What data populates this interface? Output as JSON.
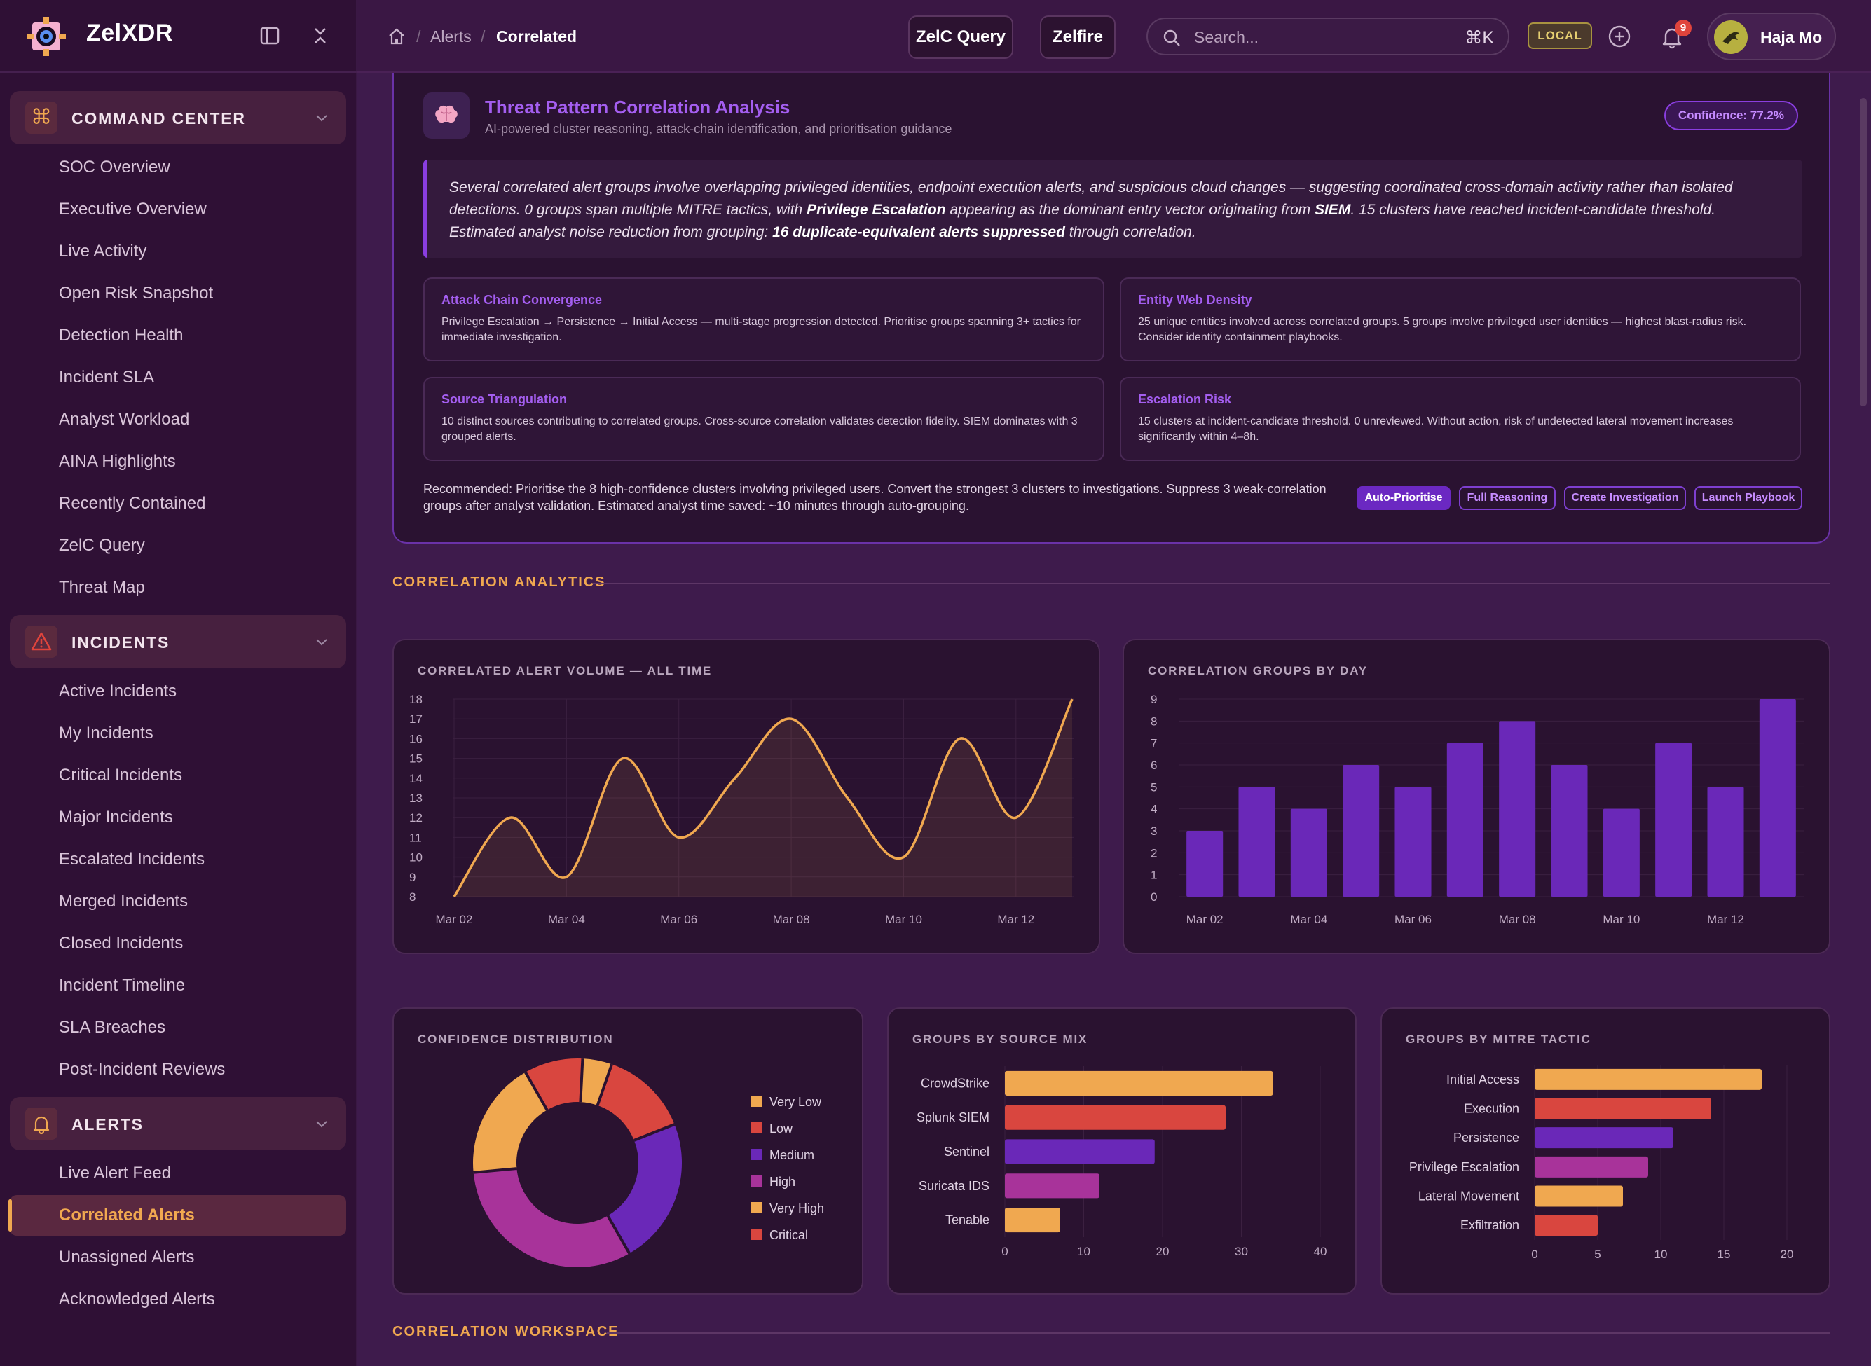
{
  "app": {
    "name": "ZelXDR"
  },
  "header": {
    "breadcrumb": [
      "Alerts",
      "Correlated"
    ],
    "buttons": [
      "ZelC Query",
      "Zelfire"
    ],
    "search_placeholder": "Search...",
    "search_shortcut": "⌘K",
    "env_badge": "LOCAL",
    "notification_count": "9",
    "user_name": "Haja Mo"
  },
  "sidebar": {
    "sections": [
      {
        "label": "COMMAND CENTER",
        "icon": "command-icon",
        "items": [
          "SOC Overview",
          "Executive Overview",
          "Live Activity",
          "Open Risk Snapshot",
          "Detection Health",
          "Incident SLA",
          "Analyst Workload",
          "AINA Highlights",
          "Recently Contained",
          "ZelC Query",
          "Threat Map"
        ]
      },
      {
        "label": "INCIDENTS",
        "icon": "warning-triangle-icon",
        "items": [
          "Active Incidents",
          "My Incidents",
          "Critical Incidents",
          "Major Incidents",
          "Escalated Incidents",
          "Merged Incidents",
          "Closed Incidents",
          "Incident Timeline",
          "SLA Breaches",
          "Post-Incident Reviews"
        ]
      },
      {
        "label": "ALERTS",
        "icon": "bell-icon",
        "items": [
          "Live Alert Feed",
          "Correlated Alerts",
          "Unassigned Alerts",
          "Acknowledged Alerts"
        ]
      }
    ],
    "active_item": "Correlated Alerts"
  },
  "ai_panel": {
    "title": "Threat Pattern Correlation Analysis",
    "subtitle": "AI-powered cluster reasoning, attack-chain identification, and prioritisation guidance",
    "confidence": "Confidence: 77.2%",
    "summary": {
      "p1": "Several correlated alert groups involve overlapping privileged identities, endpoint execution alerts, and suspicious cloud changes — suggesting coordinated cross-domain activity rather than isolated detections. 0 groups span multiple MITRE tactics, with ",
      "b1": "Privilege Escalation",
      "p2": " appearing as the dominant entry vector originating from ",
      "b2": "SIEM",
      "p3": ". 15 clusters have reached incident-candidate threshold. Estimated analyst noise reduction from grouping: ",
      "b3": "16 duplicate-equivalent alerts suppressed",
      "p4": " through correlation."
    },
    "insights": [
      {
        "title": "Attack Chain Convergence",
        "text": "Privilege Escalation → Persistence → Initial Access — multi-stage progression detected. Prioritise groups spanning 3+ tactics for immediate investigation."
      },
      {
        "title": "Entity Web Density",
        "text": "25 unique entities involved across correlated groups. 5 groups involve privileged user identities — highest blast-radius risk. Consider identity containment playbooks."
      },
      {
        "title": "Source Triangulation",
        "text": "10 distinct sources contributing to correlated groups. Cross-source correlation validates detection fidelity. SIEM dominates with 3 grouped alerts."
      },
      {
        "title": "Escalation Risk",
        "text": "15 clusters at incident-candidate threshold. 0 unreviewed. Without action, risk of undetected lateral movement increases significantly within 4–8h."
      }
    ],
    "recommendation": "Recommended: Prioritise the 8 high-confidence clusters involving privileged users. Convert the strongest 3 clusters to investigations. Suppress 3 weak-correlation groups after analyst validation. Estimated analyst time saved: ~10 minutes through auto-grouping.",
    "actions": [
      "Auto-Prioritise",
      "Full Reasoning",
      "Create Investigation",
      "Launch Playbook"
    ]
  },
  "sections": {
    "analytics": "CORRELATION ANALYTICS",
    "workspace": "CORRELATION WORKSPACE"
  },
  "colors": {
    "accent": "#8a3ee0",
    "orange": "#f0a850",
    "red": "#d9463f",
    "purple": "#6a28b8",
    "magenta": "#a8339a"
  },
  "chart_data": [
    {
      "type": "area",
      "title": "CORRELATED ALERT VOLUME — ALL TIME",
      "x": [
        "Mar 02",
        "Mar 03",
        "Mar 04",
        "Mar 05",
        "Mar 06",
        "Mar 07",
        "Mar 08",
        "Mar 09",
        "Mar 10",
        "Mar 11",
        "Mar 12",
        "Mar 13"
      ],
      "x_tick_labels": [
        "Mar 02",
        "Mar 04",
        "Mar 06",
        "Mar 08",
        "Mar 10",
        "Mar 12"
      ],
      "values": [
        8,
        12,
        9,
        15,
        11,
        14,
        17,
        13,
        10,
        16,
        12,
        18
      ],
      "ylim": [
        8,
        18
      ],
      "y_ticks": [
        8,
        9,
        10,
        11,
        12,
        13,
        14,
        15,
        16,
        17,
        18
      ],
      "grid": true
    },
    {
      "type": "bar",
      "title": "CORRELATION GROUPS BY DAY",
      "categories": [
        "Mar 02",
        "Mar 03",
        "Mar 04",
        "Mar 05",
        "Mar 06",
        "Mar 07",
        "Mar 08",
        "Mar 09",
        "Mar 10",
        "Mar 11",
        "Mar 12",
        "Mar 13"
      ],
      "x_tick_labels": [
        "Mar 02",
        "Mar 04",
        "Mar 06",
        "Mar 08",
        "Mar 10",
        "Mar 12"
      ],
      "values": [
        3,
        5,
        4,
        6,
        5,
        7,
        8,
        6,
        4,
        7,
        5,
        9
      ],
      "ylim": [
        0,
        9
      ],
      "y_ticks": [
        0,
        1,
        2,
        3,
        4,
        5,
        6,
        7,
        8,
        9
      ],
      "grid": true
    },
    {
      "type": "pie",
      "title": "CONFIDENCE DISTRIBUTION",
      "categories": [
        "Very Low",
        "Low",
        "Medium",
        "High",
        "Very High",
        "Critical"
      ],
      "values": [
        1,
        3,
        5,
        7,
        4,
        2
      ],
      "colors": [
        "#f0a850",
        "#d9463f",
        "#6a28b8",
        "#a8339a",
        "#f0a850",
        "#d9463f"
      ],
      "legend": "right"
    },
    {
      "type": "bar",
      "orientation": "horizontal",
      "title": "GROUPS BY SOURCE MIX",
      "categories": [
        "CrowdStrike",
        "Splunk SIEM",
        "Sentinel",
        "Suricata IDS",
        "Tenable"
      ],
      "values": [
        34,
        28,
        19,
        12,
        7
      ],
      "colors": [
        "#f0a850",
        "#d9463f",
        "#6a28b8",
        "#a8339a",
        "#f0a850"
      ],
      "xlim": [
        0,
        40
      ],
      "x_ticks": [
        0,
        10,
        20,
        30,
        40
      ]
    },
    {
      "type": "bar",
      "orientation": "horizontal",
      "title": "GROUPS BY MITRE TACTIC",
      "categories": [
        "Initial Access",
        "Execution",
        "Persistence",
        "Privilege Escalation",
        "Lateral Movement",
        "Exfiltration"
      ],
      "values": [
        18,
        14,
        11,
        9,
        7,
        5
      ],
      "colors": [
        "#f0a850",
        "#d9463f",
        "#6a28b8",
        "#a8339a",
        "#f0a850",
        "#d9463f"
      ],
      "xlim": [
        0,
        20
      ],
      "x_ticks": [
        0,
        5,
        10,
        15,
        20
      ]
    }
  ]
}
